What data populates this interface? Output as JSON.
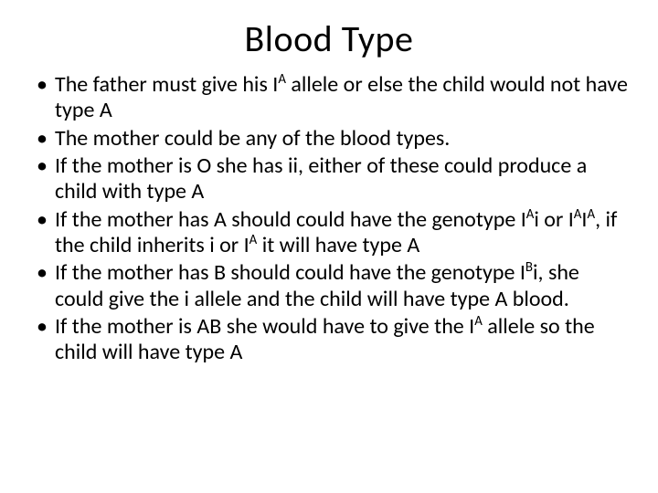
{
  "slide": {
    "background_color": "#ffffff",
    "text_color": "#000000",
    "title": {
      "text": "Blood Type",
      "fontsize": 40,
      "align": "center"
    },
    "body_fontsize": 24,
    "bullet_char": "•",
    "bullets": [
      {
        "pre0": "The father must give his I",
        "sup0": "A",
        "post0": " allele or else the child would not have type A"
      },
      {
        "pre0": "The mother could be any of the blood types."
      },
      {
        "pre0": "If the mother is O she has ii, either of these could produce a child with type A"
      },
      {
        "pre0": "If the mother has A should could have the genotype I",
        "sup0": "A",
        "mid0": "i or I",
        "sup1": "A",
        "mid1": "I",
        "sup2": "A",
        "mid2": ", if the child inherits i or I",
        "sup3": "A",
        "post0": " it will have type A"
      },
      {
        "pre0": "If the mother has B should could have the genotype I",
        "sup0": "B",
        "post0": "i, she could give the i allele and the child will have type A blood."
      },
      {
        "pre0": "If the mother is AB she would have to give the I",
        "sup0": "A",
        "post0": " allele so the child will have type A"
      }
    ]
  }
}
